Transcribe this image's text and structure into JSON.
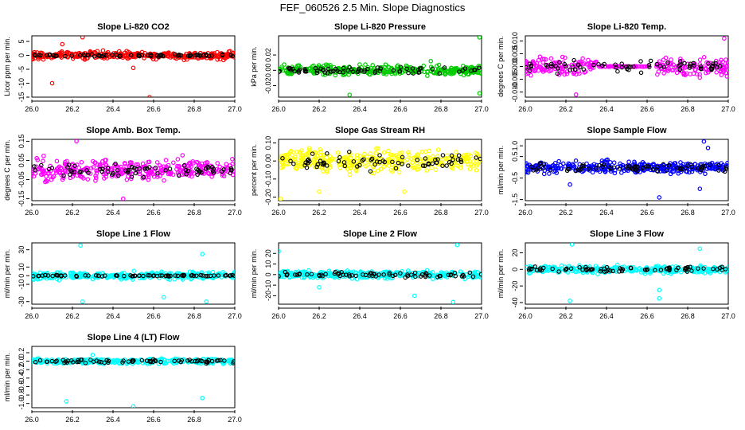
{
  "suptitle": "FEF_060526  2.5 Min. Slope Diagnostics",
  "chart_data": [
    {
      "type": "scatter",
      "title": "Slope Li-820 CO2",
      "ylabel": "Licor ppm per min.",
      "color": "#ff0000",
      "xlim": [
        26.0,
        27.0
      ],
      "xticks": [
        "26.0",
        "26.2",
        "26.4",
        "26.6",
        "26.8",
        "27.0"
      ],
      "ylim": [
        -15,
        7
      ],
      "yticks": [
        "-15",
        "-10",
        "-5",
        "0",
        "5"
      ],
      "ytick_values": [
        -15,
        -10,
        -5,
        0,
        5
      ],
      "spread": 1.3,
      "outliers": [
        [
          26.1,
          -10
        ],
        [
          26.25,
          6.5
        ],
        [
          26.58,
          -15
        ],
        [
          26.5,
          -4.5
        ],
        [
          26.15,
          4
        ]
      ],
      "black_spread": 0.4
    },
    {
      "type": "scatter",
      "title": "Slope Li-820 Pressure",
      "ylabel": "kPa per min.",
      "color": "#00cc00",
      "xlim": [
        26.0,
        27.0
      ],
      "xticks": [
        "26.0",
        "26.2",
        "26.4",
        "26.6",
        "26.8",
        "27.0"
      ],
      "ylim": [
        -0.035,
        0.045
      ],
      "yticks": [
        "-0.02",
        "0.00",
        "0.02"
      ],
      "ytick_values": [
        -0.02,
        0,
        0.02
      ],
      "spread": 0.006,
      "outliers": [
        [
          26.99,
          0.043
        ],
        [
          26.35,
          -0.032
        ],
        [
          26.99,
          -0.03
        ],
        [
          26.75,
          0.012
        ]
      ],
      "black_spread": 0.004
    },
    {
      "type": "scatter",
      "title": "Slope Li-820 Temp.",
      "ylabel": "degrees C per min.",
      "color": "#ff00ff",
      "xlim": [
        26.0,
        27.0
      ],
      "xticks": [
        "26.0",
        "26.2",
        "26.4",
        "26.6",
        "26.8",
        "27.0"
      ],
      "ylim": [
        -0.012,
        0.012
      ],
      "yticks": [
        "-0.010",
        "-0.005",
        "0.000",
        "0.005",
        "0.010"
      ],
      "ytick_values": [
        -0.01,
        -0.005,
        0,
        0.005,
        0.01
      ],
      "spread": 0.0035,
      "gap": [
        26.35,
        26.65
      ],
      "outliers": [
        [
          26.25,
          -0.011
        ],
        [
          26.98,
          0.011
        ]
      ],
      "black_spread": 0.002
    },
    {
      "type": "scatter",
      "title": "Slope Amb. Box Temp.",
      "ylabel": "degrees C per min.",
      "color": "#ff00ff",
      "xlim": [
        26.0,
        27.0
      ],
      "xticks": [
        "26.0",
        "26.2",
        "26.4",
        "26.6",
        "26.8",
        "27.0"
      ],
      "ylim": [
        -0.16,
        0.16
      ],
      "yticks": [
        "-0.15",
        "-0.05",
        "0.05",
        "0.15"
      ],
      "ytick_values": [
        -0.15,
        -0.05,
        0.05,
        0.15
      ],
      "spread": 0.05,
      "outliers": [
        [
          26.22,
          0.15
        ],
        [
          26.45,
          -0.15
        ]
      ],
      "black_spread": 0.03
    },
    {
      "type": "scatter",
      "title": "Slope Gas Stream RH",
      "ylabel": "percent per min.",
      "color": "#ffff00",
      "xlim": [
        26.0,
        27.0
      ],
      "xticks": [
        "26.0",
        "26.2",
        "26.4",
        "26.6",
        "26.8",
        "27.0"
      ],
      "ylim": [
        -0.22,
        0.12
      ],
      "yticks": [
        "-0.20",
        "-0.10",
        "0.00",
        "0.10"
      ],
      "ytick_values": [
        -0.2,
        -0.1,
        0,
        0.1
      ],
      "spread": 0.06,
      "outliers": [
        [
          26.01,
          -0.21
        ],
        [
          26.2,
          -0.17
        ],
        [
          26.62,
          -0.17
        ]
      ],
      "black_spread": 0.05
    },
    {
      "type": "scatter",
      "title": "Slope Sample Flow",
      "ylabel": "ml/min per min.",
      "color": "#0000ff",
      "xlim": [
        26.0,
        27.0
      ],
      "xticks": [
        "26.0",
        "26.2",
        "26.4",
        "26.6",
        "26.8",
        "27.0"
      ],
      "ylim": [
        -1.55,
        1.3
      ],
      "yticks": [
        "-1.5",
        "-0.5",
        "0.5",
        "1.0"
      ],
      "ytick_values": [
        -1.5,
        -0.5,
        0.5,
        1.0
      ],
      "spread": 0.25,
      "outliers": [
        [
          26.66,
          -1.4
        ],
        [
          26.88,
          1.2
        ],
        [
          26.86,
          -1.0
        ],
        [
          26.22,
          -0.8
        ],
        [
          26.9,
          0.9
        ]
      ],
      "black_spread": 0.2
    },
    {
      "type": "scatter",
      "title": "Slope Line 1 Flow",
      "ylabel": "ml/min per min.",
      "color": "#00ffff",
      "xlim": [
        26.0,
        27.0
      ],
      "xticks": [
        "26.0",
        "26.2",
        "26.4",
        "26.6",
        "26.8",
        "27.0"
      ],
      "ylim": [
        -33,
        38
      ],
      "yticks": [
        "-30",
        "-10",
        "0",
        "10",
        "30"
      ],
      "ytick_values": [
        -30,
        -10,
        0,
        10,
        30
      ],
      "spread": 4,
      "outliers": [
        [
          26.24,
          35
        ],
        [
          26.86,
          -30
        ],
        [
          26.25,
          -30
        ],
        [
          26.65,
          -25
        ],
        [
          26.84,
          25
        ]
      ],
      "black_spread": 0.8
    },
    {
      "type": "scatter",
      "title": "Slope Line 2 Flow",
      "ylabel": "ml/min per min.",
      "color": "#00ffff",
      "xlim": [
        26.0,
        27.0
      ],
      "xticks": [
        "26.0",
        "26.2",
        "26.4",
        "26.6",
        "26.8",
        "27.0"
      ],
      "ylim": [
        -28,
        30
      ],
      "yticks": [
        "-20",
        "-10",
        "0",
        "10",
        "20"
      ],
      "ytick_values": [
        -20,
        -10,
        0,
        10,
        20
      ],
      "spread": 3.5,
      "outliers": [
        [
          26.88,
          28
        ],
        [
          26.67,
          -20
        ],
        [
          26.86,
          -26
        ],
        [
          26.2,
          -12
        ],
        [
          26.0,
          22
        ]
      ],
      "black_spread": 2.5
    },
    {
      "type": "scatter",
      "title": "Slope Line 3 Flow",
      "ylabel": "ml/min per min.",
      "color": "#00ffff",
      "xlim": [
        26.0,
        27.0
      ],
      "xticks": [
        "26.0",
        "26.2",
        "26.4",
        "26.6",
        "26.8",
        "27.0"
      ],
      "ylim": [
        -42,
        32
      ],
      "yticks": [
        "-40",
        "-20",
        "0",
        "20"
      ],
      "ytick_values": [
        -40,
        -20,
        0,
        20
      ],
      "spread": 4,
      "outliers": [
        [
          26.22,
          -38
        ],
        [
          26.23,
          30
        ],
        [
          26.66,
          -35
        ],
        [
          26.86,
          25
        ],
        [
          26.66,
          -25
        ]
      ],
      "black_spread": 3
    },
    {
      "type": "scatter",
      "title": "Slope Line 4 (LT) Flow",
      "ylabel": "ml/min per min.",
      "color": "#00ffff",
      "xlim": [
        26.0,
        27.0
      ],
      "xticks": [
        "26.0",
        "26.2",
        "26.4",
        "26.6",
        "26.8",
        "27.0"
      ],
      "ylim": [
        -1.1,
        0.35
      ],
      "yticks": [
        "-1.0",
        "-0.8",
        "-0.6",
        "-0.4",
        "-0.2",
        "0.0",
        "0.2"
      ],
      "ytick_values": [
        -1.0,
        -0.8,
        -0.6,
        -0.4,
        -0.2,
        0,
        0.2
      ],
      "spread": 0.06,
      "outliers": [
        [
          26.17,
          -0.95
        ],
        [
          26.5,
          -1.07
        ],
        [
          26.84,
          -0.87
        ],
        [
          26.3,
          0.15
        ]
      ],
      "black_spread": 0.05
    }
  ]
}
